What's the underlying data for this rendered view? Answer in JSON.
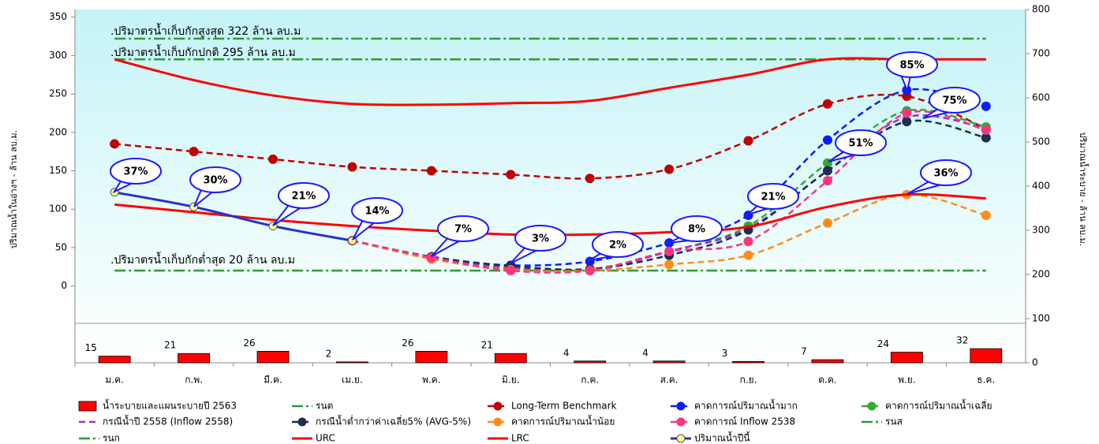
{
  "chart_data": {
    "type": "line",
    "categories": [
      "ม.ค.",
      "ก.พ.",
      "มี.ค.",
      "เม.ย.",
      "พ.ค.",
      "มิ.ย.",
      "ก.ค.",
      "ส.ค.",
      "ก.ย.",
      "ต.ค.",
      "พ.ย.",
      "ธ.ค."
    ],
    "y_label": "ปริมาณน้ำในอ่างฯ - ล้าน ลบ.ม.",
    "y2_label": "ปริมาณน้ำระบาย - ล้าน ลบ.ม.",
    "ylim": [
      -100,
      360
    ],
    "yticks": [
      0,
      50,
      100,
      150,
      200,
      250,
      300,
      350
    ],
    "y2lim": [
      0,
      800
    ],
    "y2ticks": [
      0,
      100,
      200,
      300,
      400,
      500,
      600,
      700,
      800
    ],
    "annotations": [
      ".ปริมาตรน้ำเก็บกักสูงสุด 322 ล้าน ลบ.ม",
      ".ปริมาตรน้ำเก็บกักปกติ 295 ล้าน ลบ.ม",
      ".ปริมาตรน้ำเก็บกักต่ำสุด 20 ล้าน ลบ.ม"
    ],
    "callouts": [
      "37%",
      "30%",
      "21%",
      "14%",
      "7%",
      "3%",
      "2%",
      "8%",
      "21%",
      "51%",
      "85%",
      "75%",
      "36%"
    ],
    "series": [
      {
        "name": "น้ำระบายและแผนระบายปี 2563",
        "type": "bar",
        "axis": "y2",
        "color": "#ff0000",
        "values": [
          15,
          21,
          26,
          2,
          26,
          21,
          4,
          4,
          3,
          7,
          24,
          32
        ]
      },
      {
        "name": "รนต",
        "color": "#339933",
        "dash": "dashdot",
        "marker": false,
        "values": [
          20,
          20,
          20,
          20,
          20,
          20,
          20,
          20,
          20,
          20,
          20,
          20
        ]
      },
      {
        "name": "Long-Term Benchmark",
        "color": "#c00000",
        "dash": "dashed",
        "marker": true,
        "values": [
          185,
          175,
          165,
          155,
          150,
          145,
          140,
          152,
          189,
          237,
          247,
          205
        ]
      },
      {
        "name": "คาดการณ์ปริมาณน้ำมาก",
        "color": "#0a1eff",
        "dash": "dashed",
        "marker": true,
        "values": [
          null,
          null,
          null,
          59,
          38,
          27,
          32,
          56,
          92,
          190,
          255,
          234
        ]
      },
      {
        "name": "คาดการณ์ปริมาณน้ำเฉลี่ย",
        "color": "#33aa33",
        "dash": "dashed",
        "marker": true,
        "values": [
          null,
          null,
          null,
          59,
          37,
          25,
          22,
          45,
          78,
          160,
          228,
          207
        ]
      },
      {
        "name": "กรณีน้ำปี 2558 (Inflow 2558)",
        "color": "#9933cc",
        "dash": "dashed",
        "marker": false,
        "values": [
          null,
          null,
          null,
          59,
          36,
          23,
          20,
          45,
          75,
          150,
          220,
          205
        ]
      },
      {
        "name": "กรณีน้ำต่ำกว่าค่าเฉลี่ย5% (AVG-5%)",
        "color": "#1f2d4f",
        "dash": "dashed",
        "marker": true,
        "values": [
          null,
          null,
          null,
          59,
          38,
          26,
          22,
          40,
          73,
          150,
          214,
          193
        ]
      },
      {
        "name": "คาดการณ์ปริมาณน้ำน้อย",
        "color": "#ff8c1a",
        "dash": "dashed",
        "marker": true,
        "values": [
          null,
          null,
          null,
          59,
          35,
          21,
          20,
          28,
          40,
          82,
          119,
          92
        ]
      },
      {
        "name": "คาดการณ์ Inflow 2538",
        "color": "#ff3380",
        "dash": "dashed",
        "marker": true,
        "values": [
          null,
          null,
          null,
          59,
          37,
          20,
          20,
          45,
          58,
          137,
          225,
          203
        ]
      },
      {
        "name": "รนส",
        "color": "#339933",
        "dash": "dashdot",
        "marker": false,
        "values": [
          322,
          322,
          322,
          322,
          322,
          322,
          322,
          322,
          322,
          322,
          322,
          322
        ]
      },
      {
        "name": "รนก",
        "color": "#339933",
        "dash": "dashdot",
        "marker": false,
        "values": [
          295,
          295,
          295,
          295,
          295,
          295,
          295,
          295,
          295,
          295,
          295,
          295
        ]
      },
      {
        "name": "URC",
        "color": "#ff0000",
        "dash": "solid",
        "marker": false,
        "values": [
          295,
          268,
          248,
          237,
          236,
          238,
          241,
          258,
          275,
          295,
          295,
          295
        ]
      },
      {
        "name": "LRC",
        "color": "#ff0000",
        "dash": "solid",
        "marker": false,
        "values": [
          106,
          96,
          86,
          78,
          72,
          67,
          67,
          70,
          77,
          103,
          119,
          114
        ]
      },
      {
        "name": "ปริมาณน้ำปีนี้",
        "color": "#2233cc",
        "dash": "solid",
        "marker": true,
        "marker_color": "#ffff99",
        "values": [
          122,
          103,
          78,
          59,
          null,
          null,
          null,
          null,
          null,
          null,
          null,
          null
        ]
      }
    ]
  }
}
